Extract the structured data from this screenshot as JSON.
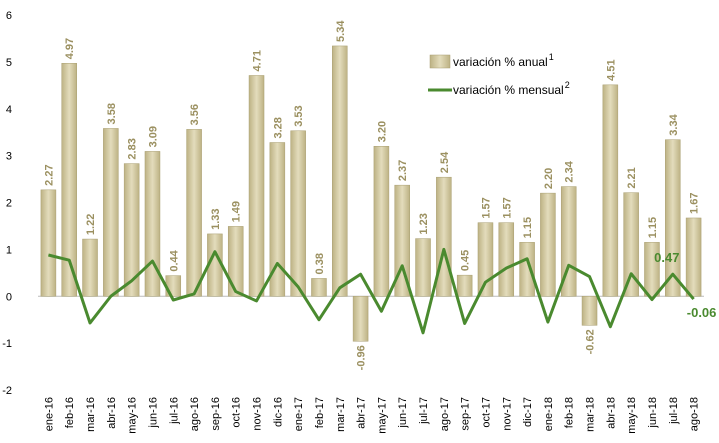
{
  "chart_data": {
    "type": "bar-line",
    "categories": [
      "ene-16",
      "feb-16",
      "mar-16",
      "abr-16",
      "may-16",
      "jun-16",
      "jul-16",
      "ago-16",
      "sep-16",
      "oct-16",
      "nov-16",
      "dic-16",
      "ene-17",
      "feb-17",
      "mar-17",
      "abr-17",
      "may-17",
      "jun-17",
      "jul-17",
      "ago-17",
      "sep-17",
      "oct-17",
      "nov-17",
      "dic-17",
      "ene-18",
      "feb-18",
      "mar-18",
      "abr-18",
      "may-18",
      "jun-18",
      "jul-18",
      "ago-18"
    ],
    "series": [
      {
        "name": "variación % anual",
        "note": "1",
        "kind": "bar",
        "color": "#cfc59b",
        "values": [
          2.27,
          4.97,
          1.22,
          3.58,
          2.83,
          3.09,
          0.44,
          3.56,
          1.33,
          1.49,
          4.71,
          3.28,
          3.53,
          0.38,
          5.34,
          -0.96,
          3.2,
          2.37,
          1.23,
          2.54,
          0.45,
          1.57,
          1.57,
          1.15,
          2.2,
          2.34,
          -0.62,
          4.51,
          2.21,
          1.15,
          3.34,
          1.67
        ],
        "value_labels": [
          "2.27",
          "4.97",
          "1.22",
          "3.58",
          "2.83",
          "3.09",
          "0.44",
          "3.56",
          "1.33",
          "1.49",
          "4.71",
          "3.28",
          "3.53",
          "0.38",
          "5.34",
          "-0.96",
          "3.20",
          "2.37",
          "1.23",
          "2.54",
          "0.45",
          "1.57",
          "1.57",
          "1.15",
          "2.20",
          "2.34",
          "-0.62",
          "4.51",
          "2.21",
          "1.15",
          "3.34",
          "1.67"
        ]
      },
      {
        "name": "variación % mensual",
        "note": "2",
        "kind": "line",
        "color": "#4a8a2f",
        "values": [
          0.88,
          0.77,
          -0.57,
          0.0,
          0.33,
          0.75,
          -0.08,
          0.05,
          0.95,
          0.1,
          -0.1,
          0.7,
          0.2,
          -0.5,
          0.18,
          0.47,
          -0.32,
          0.65,
          -0.78,
          1.0,
          -0.58,
          0.3,
          0.6,
          0.8,
          -0.55,
          0.66,
          0.42,
          -0.65,
          0.48,
          -0.07,
          0.47,
          -0.06
        ],
        "value_labels": [
          null,
          null,
          null,
          null,
          null,
          null,
          null,
          null,
          null,
          null,
          null,
          null,
          null,
          null,
          null,
          null,
          null,
          null,
          null,
          null,
          null,
          null,
          null,
          null,
          null,
          null,
          null,
          null,
          null,
          null,
          "0.47",
          "-0.06"
        ]
      }
    ],
    "ylim": [
      -2,
      6
    ],
    "yticks": [
      -2,
      -1,
      0,
      1,
      2,
      3,
      4,
      5,
      6
    ],
    "grid": false
  }
}
